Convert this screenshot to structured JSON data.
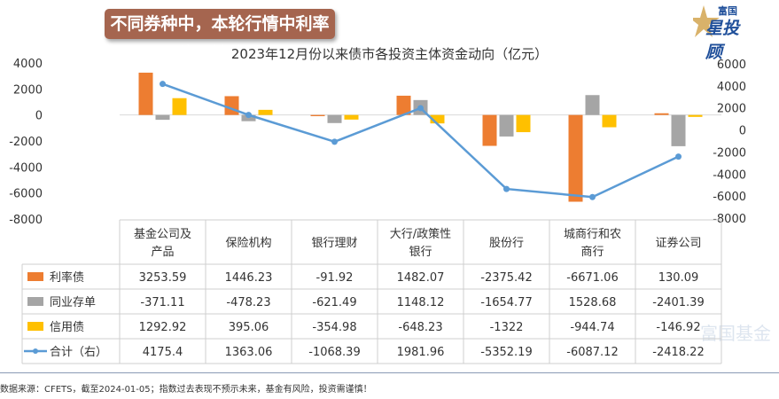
{
  "banner": "不同券种中，本轮行情中利率债更被偏爱",
  "logo": {
    "top": "富国",
    "main": "星投顾"
  },
  "watermark": "富国基金",
  "footer": "数据来源：CFETS，截至2024-01-05；指数过去表现不预示未来，基金有风险，投资需谨慎！",
  "chart_data": {
    "type": "bar+line",
    "title": "2023年12月份以来债市各投资主体资金动向（亿元）",
    "categories": [
      "基金公司及产品",
      "保险机构",
      "银行理财",
      "大行/政策性银行",
      "股份行",
      "城商行和农商行",
      "证券公司"
    ],
    "category_lines": [
      [
        "基金公司及",
        "产品"
      ],
      [
        "保险机构"
      ],
      [
        "银行理财"
      ],
      [
        "大行/政策性",
        "银行"
      ],
      [
        "股份行"
      ],
      [
        "城商行和农",
        "商行"
      ],
      [
        "证券公司"
      ]
    ],
    "left_axis": {
      "ylim": [
        -8000,
        4000
      ],
      "ticks": [
        "4000",
        "2000",
        "0",
        "-2000",
        "-4000",
        "-6000",
        "-8000"
      ]
    },
    "right_axis": {
      "ylim": [
        -8000,
        6000
      ],
      "ticks": [
        "6000",
        "4000",
        "2000",
        "0",
        "-2000",
        "-4000",
        "-6000",
        "-8000"
      ]
    },
    "series": [
      {
        "name": "利率债",
        "type": "bar",
        "axis": "left",
        "color": "#ed7d31",
        "values": [
          3253.59,
          1446.23,
          -91.92,
          1482.07,
          -2375.42,
          -6671.06,
          130.09
        ],
        "labels": [
          "3253.59",
          "1446.23",
          "-91.92",
          "1482.07",
          "-2375.42",
          "-6671.06",
          "130.09"
        ]
      },
      {
        "name": "同业存单",
        "type": "bar",
        "axis": "left",
        "color": "#a5a5a5",
        "values": [
          -371.11,
          -478.23,
          -621.49,
          1148.12,
          -1654.77,
          1528.68,
          -2401.39
        ],
        "labels": [
          "-371.11",
          "-478.23",
          "-621.49",
          "1148.12",
          "-1654.77",
          "1528.68",
          "-2401.39"
        ]
      },
      {
        "name": "信用债",
        "type": "bar",
        "axis": "left",
        "color": "#ffc000",
        "values": [
          1292.92,
          395.06,
          -354.98,
          -648.23,
          -1322,
          -944.74,
          -146.92
        ],
        "labels": [
          "1292.92",
          "395.06",
          "-354.98",
          "-648.23",
          "-1322",
          "-944.74",
          "-146.92"
        ]
      },
      {
        "name": "合计（右）",
        "type": "line",
        "axis": "right",
        "color": "#5b9bd5",
        "values": [
          4175.4,
          1363.06,
          -1068.39,
          1981.96,
          -5352.19,
          -6087.12,
          -2418.22
        ],
        "labels": [
          "4175.4",
          "1363.06",
          "-1068.39",
          "1981.96",
          "-5352.19",
          "-6087.12",
          "-2418.22"
        ]
      }
    ],
    "grid": false,
    "legend": "data-table"
  }
}
